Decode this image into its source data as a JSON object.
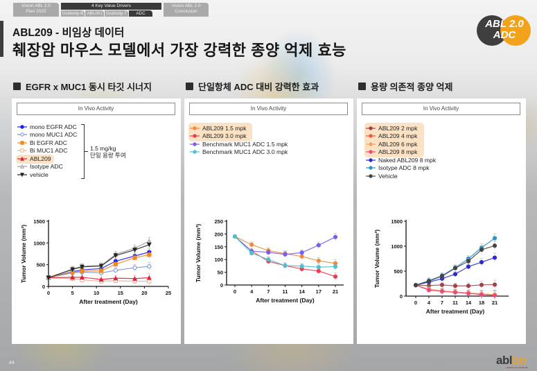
{
  "topnav": {
    "plan": [
      "Vision ABL 2.0",
      "Plan 2025"
    ],
    "group_title": "4 Key Value Drivers",
    "subs": [
      "Grabody-B",
      "ABL001",
      "Grabody-T",
      "ADC"
    ],
    "active_sub": "ADC",
    "conclusion": [
      "Vision ABL 2.0",
      "Conclusion"
    ]
  },
  "header": {
    "subtitle": "ABL209 - 비임상 데이터",
    "title": "췌장암 마우스 모델에서 가장 강력한 종양 억제 효능",
    "badge_line1": "ABL 2.0",
    "badge_line2": "ADC",
    "badge_colors": {
      "dark": "#3f3f3f",
      "accent": "#f2a21b"
    }
  },
  "sections": [
    {
      "heading": "EGFR x MUC1 동시 타깃 시너지",
      "panel_title": "In Vivo Activity"
    },
    {
      "heading": "단일항체 ADC 대비 강력한 효과",
      "panel_title": "In Vivo Activity"
    },
    {
      "heading": "용량 의존적 종양 억제",
      "panel_title": "In Vivo Activity"
    }
  ],
  "dose_note": [
    "1.5 mg/kg",
    "단일 용량 투여"
  ],
  "footer": {
    "page_number": "44",
    "logo_dark": "abl",
    "logo_accent": "bio",
    "logo_tag": "medicine for a better life"
  },
  "chart_data": [
    {
      "type": "line",
      "title": "In Vivo Activity",
      "xlabel": "After treatment (Day)",
      "ylabel": "Tumor Volume (mm³)",
      "x_ticks": [
        0,
        5,
        10,
        15,
        20,
        25
      ],
      "y_ticks": [
        0,
        500,
        1000,
        1500
      ],
      "xlim": [
        0,
        25
      ],
      "ylim": [
        0,
        1500
      ],
      "x": [
        0,
        5,
        7,
        11,
        14,
        18,
        21
      ],
      "highlighted_legend": [
        "ABL209"
      ],
      "legend_placement": "top-left",
      "series": [
        {
          "name": "mono EGFR ADC",
          "color": "#1a1aff",
          "marker": "circle-filled",
          "values": [
            200,
            340,
            380,
            410,
            580,
            700,
            790
          ]
        },
        {
          "name": "mono MUC1 ADC",
          "color": "#6f8fd9",
          "marker": "circle-open",
          "values": [
            200,
            310,
            330,
            310,
            370,
            430,
            460
          ]
        },
        {
          "name": "Bi EGFR ADC",
          "color": "#f08a1c",
          "marker": "square-filled",
          "values": [
            200,
            330,
            350,
            360,
            510,
            660,
            730
          ]
        },
        {
          "name": "Bi MUC1 ADC",
          "color": "#e8b28a",
          "marker": "square-open",
          "values": [
            200,
            180,
            150,
            120,
            130,
            120,
            120
          ]
        },
        {
          "name": "ABL209",
          "color": "#e0203a",
          "marker": "triangle-filled",
          "values": [
            200,
            210,
            210,
            160,
            190,
            180,
            200
          ]
        },
        {
          "name": "Isotype ADC",
          "color": "#999999",
          "marker": "triangle-open",
          "values": [
            200,
            400,
            460,
            480,
            740,
            880,
            1040
          ]
        },
        {
          "name": "vehicle",
          "color": "#222222",
          "marker": "triangle-down-filled",
          "values": [
            200,
            390,
            450,
            470,
            710,
            840,
            960
          ]
        }
      ]
    },
    {
      "type": "line",
      "title": "In Vivo Activity",
      "xlabel": "After treatment (Day)",
      "ylabel": "Tumor Volume (mm³)",
      "x_ticks": [
        0,
        4,
        7,
        11,
        14,
        17,
        21
      ],
      "y_ticks": [
        0,
        50,
        100,
        150,
        200,
        250
      ],
      "ylim": [
        0,
        250
      ],
      "x": [
        0,
        4,
        7,
        11,
        14,
        17,
        21
      ],
      "x_categorical": true,
      "highlighted_legend": [
        "ABL209 1.5 mpk",
        "ABL209 3.0 mpk"
      ],
      "legend_placement": "top-left",
      "series": [
        {
          "name": "ABL209 1.5 mpk",
          "color": "#ef8a3a",
          "values": [
            190,
            158,
            135,
            123,
            112,
            95,
            85
          ]
        },
        {
          "name": "ABL209 3.0 mpk",
          "color": "#ee3b4e",
          "values": [
            190,
            133,
            93,
            76,
            63,
            55,
            33
          ]
        },
        {
          "name": "Benchmark MUC1 ADC 1.5 mpk",
          "color": "#7a5cf0",
          "values": [
            190,
            133,
            128,
            120,
            127,
            156,
            188
          ]
        },
        {
          "name": "Benchmark MUC1 ADC 3.0 mpk",
          "color": "#4fc0cf",
          "values": [
            190,
            125,
            100,
            76,
            74,
            70,
            72
          ]
        }
      ]
    },
    {
      "type": "line",
      "title": "In Vivo Activity",
      "xlabel": "After treatment (Day)",
      "ylabel": "Tumor Volume (mm³)",
      "x_ticks": [
        0,
        4,
        7,
        11,
        14,
        18,
        21
      ],
      "y_ticks": [
        0,
        500,
        1000,
        1500
      ],
      "ylim": [
        0,
        1500
      ],
      "x": [
        0,
        4,
        7,
        11,
        14,
        18,
        21
      ],
      "x_categorical": true,
      "highlighted_legend": [
        "ABL209 2 mpk",
        "ABL209 4 mpk",
        "ABL209 6 mpk",
        "ABL209 8 mpk"
      ],
      "legend_placement": "top-left",
      "series": [
        {
          "name": "ABL209 2 mpk",
          "color": "#a0434a",
          "values": [
            220,
            210,
            225,
            205,
            205,
            225,
            230
          ]
        },
        {
          "name": "ABL209 4 mpk",
          "color": "#f05a3c",
          "values": [
            220,
            130,
            100,
            80,
            60,
            35,
            20
          ]
        },
        {
          "name": "ABL209 6 mpk",
          "color": "#f5a060",
          "values": [
            220,
            140,
            105,
            85,
            65,
            45,
            30
          ]
        },
        {
          "name": "ABL209 8 mpk",
          "color": "#f04a7a",
          "values": [
            220,
            120,
            95,
            75,
            55,
            30,
            15
          ]
        },
        {
          "name": "Naked ABL209 8 mpk",
          "color": "#2b2bd0",
          "values": [
            220,
            280,
            350,
            440,
            590,
            680,
            770
          ]
        },
        {
          "name": "Isotype ADC 8 mpk",
          "color": "#2b95c8",
          "values": [
            220,
            310,
            410,
            570,
            750,
            970,
            1160
          ]
        },
        {
          "name": "Vehicle",
          "color": "#444444",
          "values": [
            220,
            300,
            400,
            560,
            700,
            930,
            1010
          ]
        }
      ]
    }
  ]
}
